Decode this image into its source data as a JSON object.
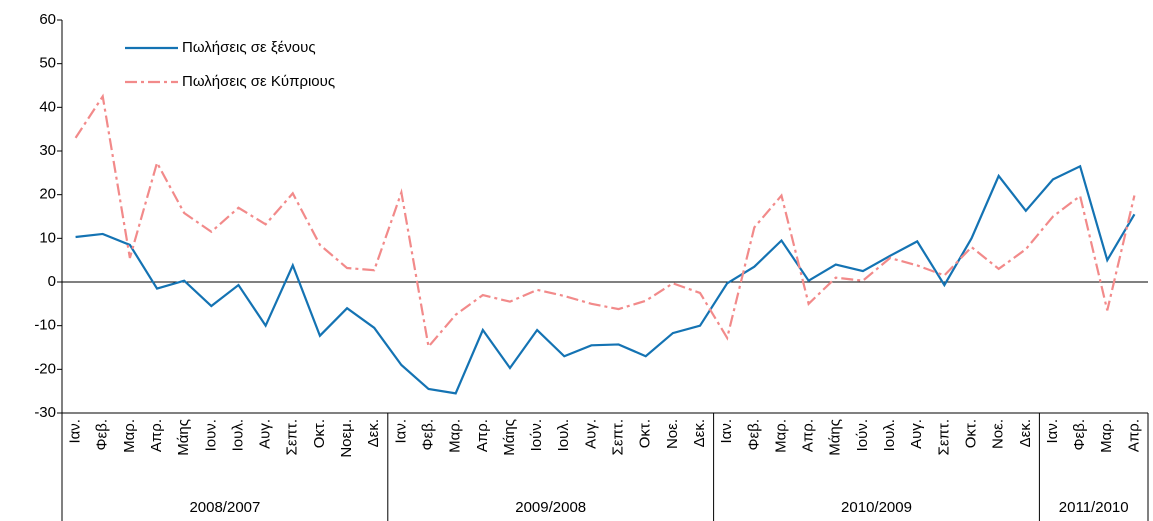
{
  "chart_data": {
    "type": "line",
    "groups": [
      {
        "name": "2008/2007",
        "categories": [
          "Ιαν.",
          "Φεβ.",
          "Μαρ.",
          "Απρ.",
          "Μάης",
          "Ιουν.",
          "Ιουλ.",
          "Αυγ.",
          "Σεπτ.",
          "Οκτ.",
          "Νοεμ.",
          "Δεκ."
        ]
      },
      {
        "name": "2009/2008",
        "categories": [
          "Ιαν.",
          "Φεβ.",
          "Μαρ.",
          "Απρ.",
          "Μάης",
          "Ιούν.",
          "Ιουλ.",
          "Αυγ.",
          "Σεπτ.",
          "Οκτ.",
          "Νοε.",
          "Δεκ."
        ]
      },
      {
        "name": "2010/2009",
        "categories": [
          "Ιαν.",
          "Φεβ.",
          "Μαρ.",
          "Απρ.",
          "Μάης",
          "Ιούν.",
          "Ιουλ.",
          "Αυγ.",
          "Σεπτ.",
          "Οκτ.",
          "Νοε.",
          "Δεκ."
        ]
      },
      {
        "name": "2011/2010",
        "categories": [
          "Ιαν.",
          "Φεβ.",
          "Μαρ.",
          "Απρ."
        ]
      }
    ],
    "series": [
      {
        "name": "Πωλήσεις σε ξένους",
        "color": "#1473b3",
        "dash": "solid",
        "values": [
          10.3,
          11,
          8.5,
          -1.5,
          0.3,
          -5.5,
          -0.7,
          -10,
          3.8,
          -12.3,
          -6,
          -10.5,
          -19,
          -24.5,
          -25.5,
          -11,
          -19.7,
          -11,
          -17,
          -14.5,
          -14.3,
          -17,
          -11.7,
          -10,
          -0.3,
          3.5,
          9.5,
          0.3,
          4,
          2.5,
          6,
          9.3,
          -0.7,
          10,
          24.3,
          16.3,
          23.5,
          26.5,
          5,
          15.5
        ]
      },
      {
        "name": "Πωλήσεις σε Κύπριους",
        "color": "#f28a8a",
        "dash": "dashdot",
        "values": [
          33,
          42.5,
          5.5,
          27.3,
          15.8,
          11.5,
          17,
          13.2,
          20.3,
          8.5,
          3.2,
          2.7,
          20.5,
          -14.8,
          -7.5,
          -3,
          -4.5,
          -1.8,
          -3.2,
          -5,
          -6.2,
          -4.3,
          -0.3,
          -2.5,
          -12.8,
          12.5,
          19.8,
          -5,
          1,
          0.3,
          5.5,
          3.8,
          1.5,
          8,
          3,
          7.5,
          15,
          19.7,
          -6.5,
          19.8
        ]
      }
    ],
    "ylim": [
      -30,
      60
    ],
    "yticks": [
      -30,
      -20,
      -10,
      0,
      10,
      20,
      30,
      40,
      50,
      60
    ],
    "legend": "upper-left"
  }
}
